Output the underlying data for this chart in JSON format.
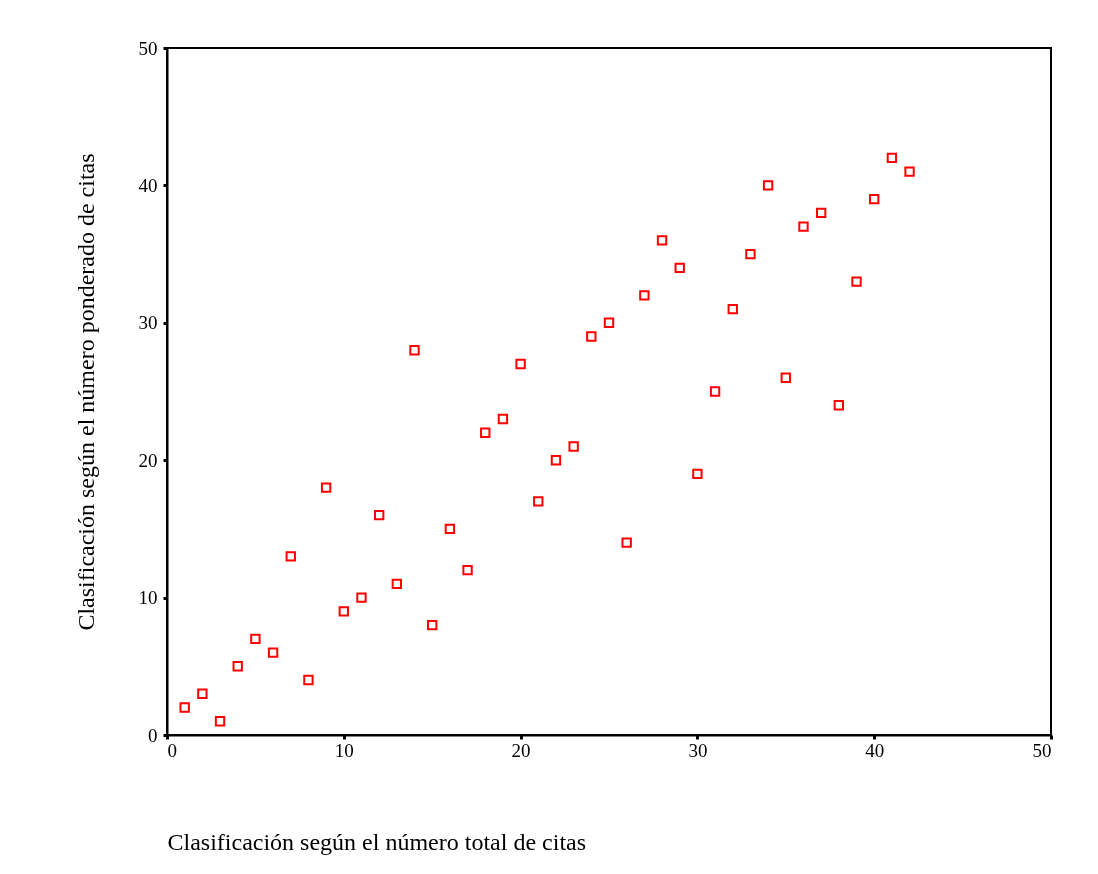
{
  "chart_data": {
    "type": "scatter",
    "xlabel": "Clasificación según el número total de citas",
    "ylabel": "Clasificación según el número ponderado de citas",
    "x": [
      1,
      2,
      3,
      4,
      5,
      6,
      7,
      8,
      9,
      10,
      11,
      12,
      13,
      14,
      15,
      16,
      17,
      18,
      19,
      20,
      21,
      22,
      23,
      24,
      25,
      26,
      27,
      28,
      29,
      30,
      31,
      32,
      33,
      34,
      35,
      36,
      37,
      38,
      39,
      40,
      41,
      42
    ],
    "series": [
      {
        "color": "#ff0000",
        "values": [
          2,
          3,
          1,
          5,
          7,
          6,
          13,
          4,
          18,
          9,
          10,
          16,
          11,
          28,
          8,
          15,
          12,
          22,
          23,
          27,
          17,
          20,
          21,
          29,
          30,
          14,
          32,
          36,
          34,
          19,
          25,
          31,
          35,
          40,
          26,
          37,
          38,
          24,
          33,
          39,
          42,
          41
        ]
      }
    ],
    "xlim": [
      0,
      50
    ],
    "ylim": [
      0,
      50
    ],
    "xticks": [
      0,
      10,
      20,
      30,
      40,
      50
    ],
    "yticks": [
      0,
      10,
      20,
      30,
      40,
      50
    ],
    "grid": false,
    "marker": "square"
  }
}
